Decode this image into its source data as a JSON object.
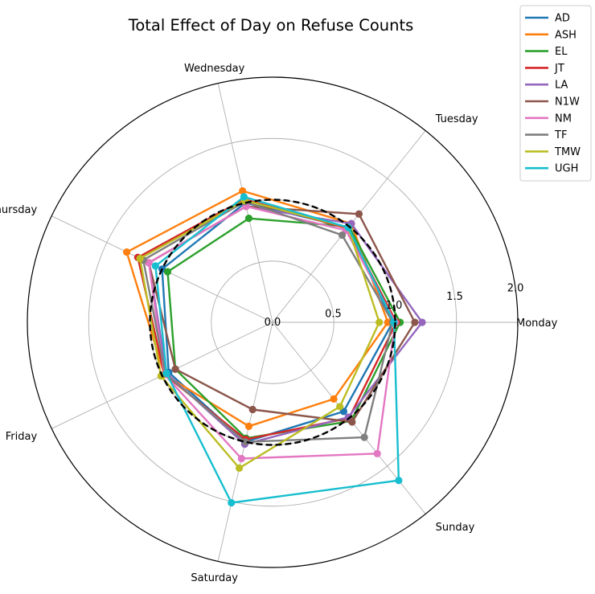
{
  "chart_data": {
    "type": "radar",
    "title": "Total Effect of Day on Refuse Counts",
    "categories": [
      "Monday",
      "Tuesday",
      "Wednesday",
      "Thursday",
      "Friday",
      "Saturday",
      "Sunday"
    ],
    "rlim": [
      0,
      2.0
    ],
    "rticks": [
      "0.0",
      "0.5",
      "1.0",
      "1.5",
      "2.0"
    ],
    "grid": true,
    "legend_position": "top-right",
    "reference": {
      "value": 1.0,
      "style": "dashed",
      "color": "#000000"
    },
    "series": [
      {
        "name": "AD",
        "color": "#1f77b4",
        "values": [
          0.98,
          0.99,
          1.0,
          1.0,
          0.94,
          1.0,
          0.93
        ]
      },
      {
        "name": "ASH",
        "color": "#ff7f0e",
        "values": [
          0.94,
          1.03,
          1.1,
          1.32,
          0.98,
          0.87,
          0.8
        ]
      },
      {
        "name": "EL",
        "color": "#2ca02c",
        "values": [
          1.04,
          1.0,
          0.87,
          0.95,
          0.88,
          0.97,
          1.03
        ]
      },
      {
        "name": "JT",
        "color": "#d62728",
        "values": [
          1.01,
          0.98,
          1.03,
          1.22,
          0.98,
          0.98,
          1.0
        ]
      },
      {
        "name": "LA",
        "color": "#9467bd",
        "values": [
          1.22,
          1.03,
          0.97,
          1.12,
          0.96,
          1.02,
          0.99
        ]
      },
      {
        "name": "N1W",
        "color": "#8c564b",
        "values": [
          1.16,
          1.13,
          0.97,
          1.12,
          0.88,
          0.73,
          1.04
        ]
      },
      {
        "name": "NM",
        "color": "#e377c2",
        "values": [
          1.0,
          0.96,
          0.97,
          1.12,
          0.98,
          1.14,
          1.37
        ]
      },
      {
        "name": "TF",
        "color": "#7f7f7f",
        "values": [
          0.98,
          0.91,
          1.01,
          1.17,
          0.97,
          1.0,
          1.2
        ]
      },
      {
        "name": "TMW",
        "color": "#bcbd22",
        "values": [
          0.87,
          0.99,
          1.02,
          1.2,
          1.01,
          1.22,
          0.88
        ]
      },
      {
        "name": "UGH",
        "color": "#17becf",
        "values": [
          0.99,
          0.99,
          1.05,
          1.06,
          0.96,
          1.51,
          1.65
        ]
      }
    ]
  }
}
